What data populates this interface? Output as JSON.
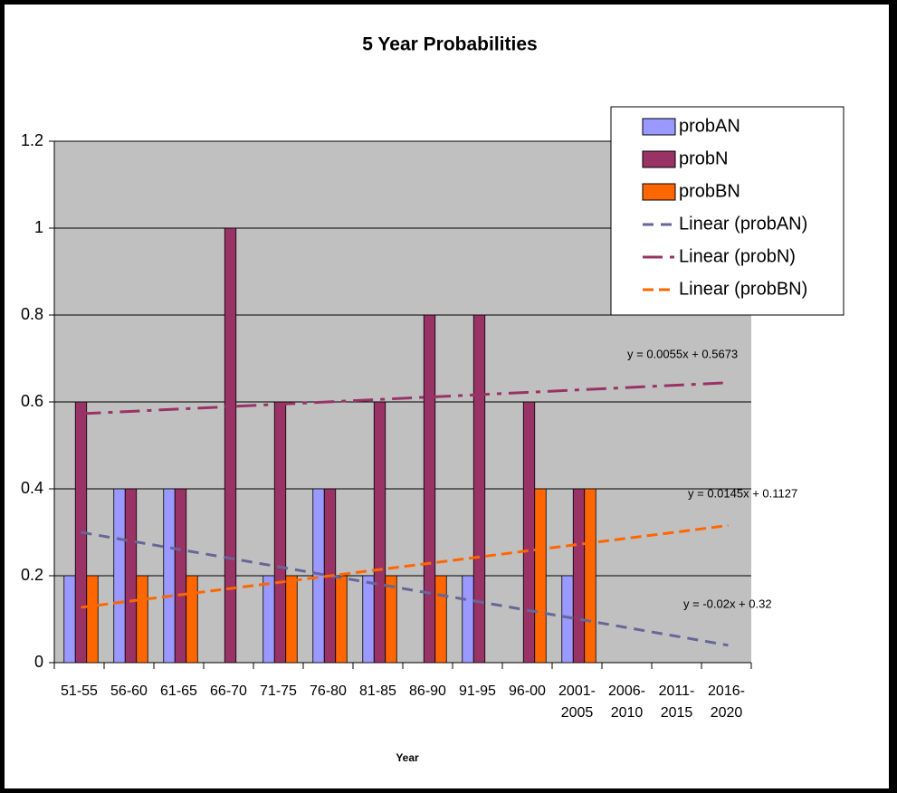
{
  "chart_data": {
    "type": "bar",
    "title": "5 Year Probabilities",
    "x_label": "Year",
    "categories": [
      "51-55",
      "56-60",
      "61-65",
      "66-70",
      "71-75",
      "76-80",
      "81-85",
      "86-90",
      "91-95",
      "96-00",
      "2001-2005",
      "2006-2010",
      "2011-2015",
      "2016-2020"
    ],
    "series": [
      {
        "name": "probAN",
        "color": "#9999ff",
        "values": [
          0.2,
          0.4,
          0.4,
          0,
          0.2,
          0.4,
          0.2,
          0,
          0.2,
          0,
          0.2,
          null,
          null,
          null
        ]
      },
      {
        "name": "probN",
        "color": "#993366",
        "values": [
          0.6,
          0.4,
          0.4,
          1,
          0.6,
          0.4,
          0.6,
          0.8,
          0.8,
          0.6,
          0.4,
          null,
          null,
          null
        ]
      },
      {
        "name": "probBN",
        "color": "#ff6600",
        "values": [
          0.2,
          0.2,
          0.2,
          0,
          0.2,
          0.2,
          0.2,
          0.2,
          0,
          0.4,
          0.4,
          null,
          null,
          null
        ]
      }
    ],
    "trendlines": [
      {
        "name": "Linear (probAN)",
        "color": "#666699",
        "slope": -0.02,
        "intercept": 0.32,
        "label": "y = -0.02x + 0.32"
      },
      {
        "name": "Linear (probN)",
        "color": "#993366",
        "slope": 0.0055,
        "intercept": 0.5673,
        "label": "y = 0.0055x + 0.5673"
      },
      {
        "name": "Linear (probBN)",
        "color": "#ff6600",
        "slope": 0.0145,
        "intercept": 0.1127,
        "label": "y = 0.0145x + 0.1127"
      }
    ],
    "ylim": [
      0,
      1.2
    ],
    "yticks": [
      0,
      0.2,
      0.4,
      0.6,
      0.8,
      1,
      1.2
    ],
    "grid": true,
    "legend": "top-right"
  }
}
